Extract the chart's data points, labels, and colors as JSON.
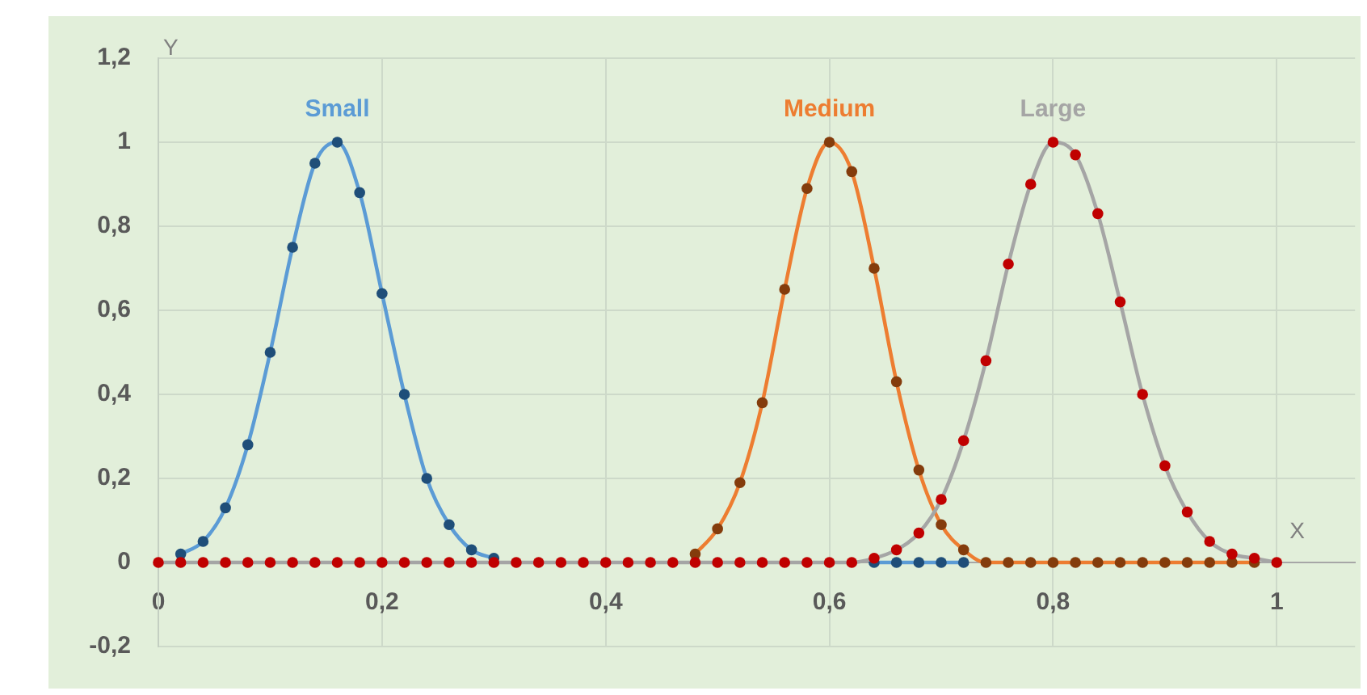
{
  "chart_data": {
    "type": "line",
    "xlabel": "X",
    "ylabel": "Y",
    "x": [
      0,
      0.02,
      0.04,
      0.06,
      0.08,
      0.1,
      0.12,
      0.14,
      0.16,
      0.18,
      0.2,
      0.22,
      0.24,
      0.26,
      0.28,
      0.3,
      0.32,
      0.34,
      0.36,
      0.38,
      0.4,
      0.42,
      0.44,
      0.46,
      0.48,
      0.5,
      0.52,
      0.54,
      0.56,
      0.58,
      0.6,
      0.62,
      0.64,
      0.66,
      0.68,
      0.7,
      0.72,
      0.74,
      0.76,
      0.78,
      0.8,
      0.82,
      0.84,
      0.86,
      0.88,
      0.9,
      0.92,
      0.94,
      0.96,
      0.98,
      1
    ],
    "series": [
      {
        "name": "Small",
        "color": "#5b9bd5",
        "colors": [
          "#1f4e79",
          "#1f4e79",
          "#1f4e79",
          "#1f4e79",
          "#1f4e79",
          "#1f4e79",
          "#1f4e79",
          "#1f4e79",
          "#1f4e79",
          "#1f4e79",
          "#1f4e79",
          "#1f4e79",
          "#1f4e79",
          "#1f4e79",
          "#1f4e79",
          "#1f4e79",
          "#1f4e79",
          "#1f4e79",
          "#1f4e79",
          "#1f4e79",
          "#1f4e79",
          "#1f4e79",
          "#1f4e79",
          "#1f4e79",
          "#1f4e79",
          "#1f4e79",
          "#1f4e79",
          "#1f4e79",
          "#1f4e79",
          "#1f4e79",
          "#1f4e79",
          "#1f4e79",
          "#1f4e79",
          "#1f4e79",
          "#1f4e79",
          "#1f4e79",
          "#1f4e79",
          "#1f4e79",
          "#1f4e79",
          "#1f4e79",
          "#1f4e79",
          "#1f4e79",
          "#1f4e79",
          "#1f4e79",
          "#1f4e79",
          "#1f4e79",
          "#1f4e79",
          "#1f4e79",
          "#1f4e79",
          "#1f4e79",
          "#1f4e79"
        ],
        "values": [
          null,
          0.02,
          0.05,
          0.13,
          0.28,
          0.5,
          0.75,
          0.95,
          1,
          0.88,
          0.64,
          0.4,
          0.2,
          0.09,
          0.03,
          0.01,
          null,
          null,
          null,
          null,
          null,
          null,
          null,
          null,
          null,
          null,
          null,
          null,
          null,
          null,
          null,
          null,
          0,
          0,
          0,
          0,
          0,
          null,
          null,
          null,
          null,
          null,
          null,
          null,
          null,
          null,
          null,
          null,
          null,
          null,
          null
        ]
      },
      {
        "name": "Medium",
        "color": "#ed7d31",
        "colors": [
          "#843c0c",
          "#843c0c",
          "#843c0c",
          "#843c0c",
          "#843c0c",
          "#843c0c",
          "#843c0c",
          "#843c0c",
          "#843c0c",
          "#843c0c",
          "#843c0c",
          "#843c0c",
          "#843c0c",
          "#843c0c",
          "#843c0c",
          "#843c0c",
          "#843c0c",
          "#843c0c",
          "#843c0c",
          "#843c0c",
          "#843c0c",
          "#843c0c",
          "#843c0c",
          "#843c0c",
          "#843c0c",
          "#843c0c",
          "#843c0c",
          "#843c0c",
          "#843c0c",
          "#843c0c",
          "#843c0c",
          "#843c0c",
          "#843c0c",
          "#843c0c",
          "#843c0c",
          "#843c0c",
          "#843c0c",
          "#843c0c",
          "#843c0c",
          "#843c0c",
          "#843c0c",
          "#843c0c",
          "#843c0c",
          "#843c0c",
          "#843c0c",
          "#843c0c",
          "#843c0c",
          "#843c0c",
          "#843c0c",
          "#843c0c",
          "#843c0c"
        ],
        "values": [
          null,
          null,
          null,
          null,
          null,
          null,
          null,
          null,
          null,
          null,
          null,
          null,
          null,
          null,
          null,
          null,
          null,
          null,
          null,
          null,
          null,
          null,
          null,
          null,
          0.02,
          0.08,
          0.19,
          0.38,
          0.65,
          0.89,
          1,
          0.93,
          0.7,
          0.43,
          0.22,
          0.09,
          0.03,
          0,
          0,
          0,
          0,
          0,
          0,
          0,
          0,
          0,
          0,
          0,
          0,
          0,
          null
        ]
      },
      {
        "name": "Large",
        "color": "#a5a5a5",
        "colors": [
          "#c00000",
          "#c00000",
          "#c00000",
          "#c00000",
          "#c00000",
          "#c00000",
          "#c00000",
          "#c00000",
          "#c00000",
          "#c00000",
          "#c00000",
          "#c00000",
          "#c00000",
          "#c00000",
          "#c00000",
          "#c00000",
          "#c00000",
          "#c00000",
          "#c00000",
          "#c00000",
          "#c00000",
          "#c00000",
          "#c00000",
          "#c00000",
          "#c00000",
          "#c00000",
          "#c00000",
          "#c00000",
          "#c00000",
          "#c00000",
          "#c00000",
          "#c00000",
          "#c00000",
          "#c00000",
          "#c00000",
          "#c00000",
          "#c00000",
          "#c00000",
          "#c00000",
          "#c00000",
          "#c00000",
          "#c00000",
          "#c00000",
          "#c00000",
          "#c00000",
          "#c00000",
          "#c00000",
          "#c00000",
          "#c00000",
          "#c00000",
          "#c00000"
        ],
        "values": [
          0,
          0,
          0,
          0,
          0,
          0,
          0,
          0,
          0,
          0,
          0,
          0,
          0,
          0,
          0,
          0,
          0,
          0,
          0,
          0,
          0,
          0,
          0,
          0,
          0,
          0,
          0,
          0,
          0,
          0,
          0,
          0,
          0.01,
          0.03,
          0.07,
          0.15,
          0.29,
          0.48,
          0.71,
          0.9,
          1,
          0.97,
          0.83,
          0.62,
          0.4,
          0.23,
          0.12,
          0.05,
          0.02,
          0.01,
          0
        ]
      }
    ],
    "xlim": [
      0,
      1.07
    ],
    "ylim": [
      -0.2,
      1.2
    ],
    "xticks": [
      0,
      {
        "value": 0.2,
        "label": "0,2"
      },
      {
        "value": 0.4,
        "label": "0,4"
      },
      {
        "value": 0.6,
        "label": "0,6"
      },
      {
        "value": 0.8,
        "label": "0,8"
      },
      1
    ],
    "yticks": [
      {
        "value": -0.2,
        "label": "-0,2"
      },
      0,
      {
        "value": 0.2,
        "label": "0,2"
      },
      {
        "value": 0.4,
        "label": "0,4"
      },
      {
        "value": 0.6,
        "label": "0,6"
      },
      {
        "value": 0.8,
        "label": "0,8"
      },
      1,
      {
        "value": 1.2,
        "label": "1,2"
      }
    ],
    "grid": true,
    "legend": false,
    "marker": "circle",
    "line_style": "solid"
  }
}
